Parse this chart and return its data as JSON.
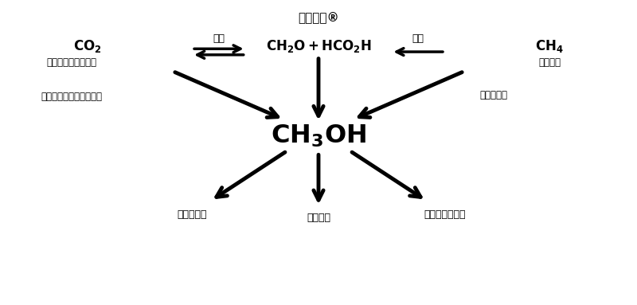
{
  "title": "甲醇经济®",
  "top_center_label": "CH$_2$O + HCO$_2$H",
  "left_label_line1": "CO$_2$",
  "left_label_line2": "来自工业废气和大气",
  "left_label_line3": "在水中加氢或电化学还原",
  "right_label_line1": "CH$_4$",
  "right_label_line2": "天然来源",
  "arrow_left_label": "还原",
  "arrow_right_label": "氧化",
  "arrow_right_sub_label": "选择性氧化",
  "bottom_left_label": "储能和燃料",
  "bottom_center_label": "燃料电池",
  "bottom_right_label": "合成烃及其产物",
  "bg_color": "#ffffff",
  "text_color": "#000000",
  "arrow_color": "#000000"
}
